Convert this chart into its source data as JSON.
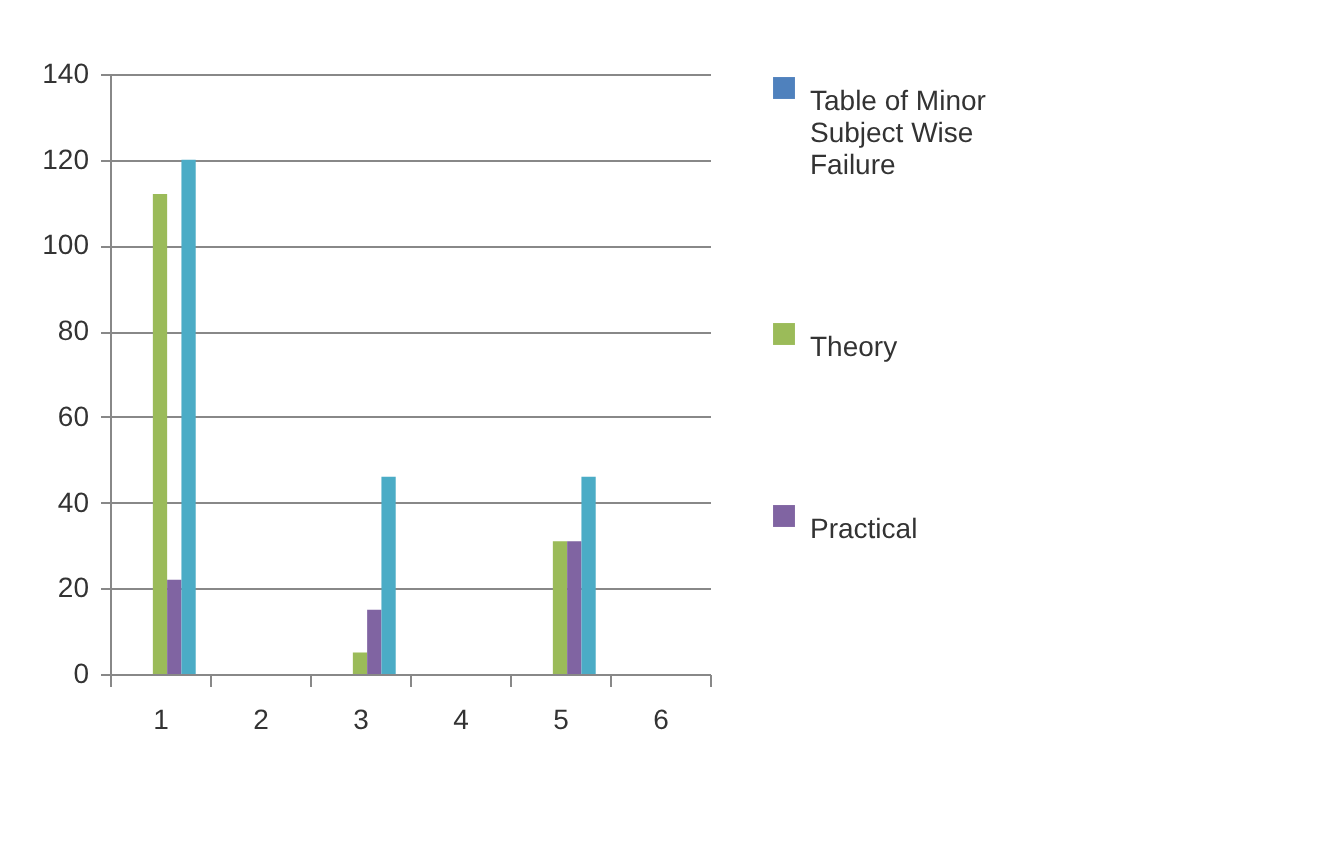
{
  "chart_data": {
    "type": "bar",
    "categories": [
      "1",
      "2",
      "3",
      "4",
      "5",
      "6"
    ],
    "series": [
      {
        "name": "Table of Minor Subject Wise Failure",
        "color": "#4f81bd",
        "values": [
          null,
          null,
          null,
          null,
          null,
          null
        ]
      },
      {
        "color": "#c0504d",
        "values": [
          null,
          null,
          null,
          null,
          null,
          null
        ]
      },
      {
        "name": "Theory",
        "color": "#9bbb59",
        "values": [
          112,
          null,
          5,
          null,
          31,
          null
        ]
      },
      {
        "name": "Practical",
        "color": "#8064a2",
        "values": [
          22,
          null,
          15,
          null,
          31,
          null
        ]
      },
      {
        "color": "#4bacc6",
        "values": [
          120,
          null,
          46,
          null,
          46,
          null
        ]
      }
    ],
    "ylim": [
      0,
      140
    ],
    "yticks": [
      0,
      20,
      40,
      60,
      80,
      100,
      120,
      140
    ],
    "grid": "y",
    "legend": "right"
  }
}
